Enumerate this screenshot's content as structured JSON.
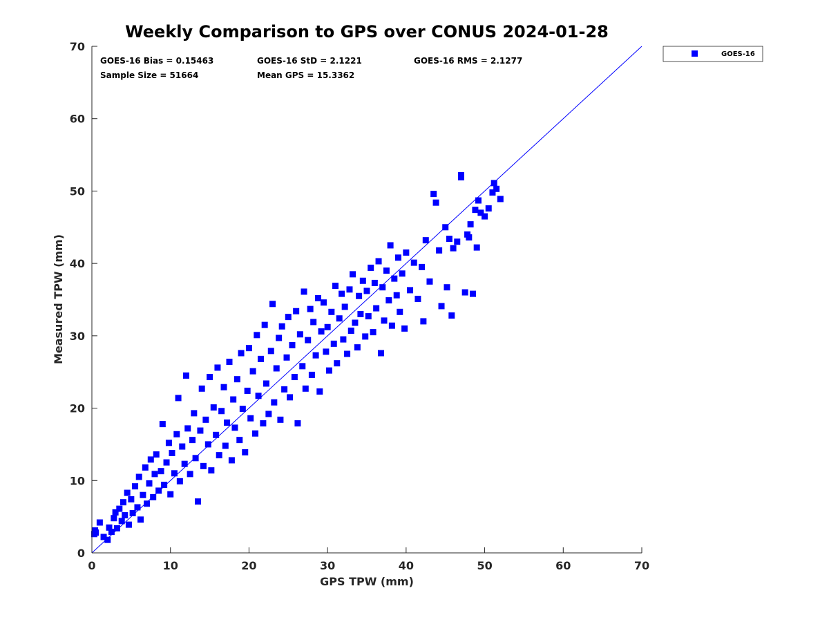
{
  "chart_data": {
    "type": "scatter",
    "title": "Weekly Comparison to GPS over CONUS 2024-01-28",
    "xlabel": "GPS TPW (mm)",
    "ylabel": "Measured TPW (mm)",
    "xlim": [
      0,
      70
    ],
    "ylim": [
      0,
      70
    ],
    "xticks": [
      0,
      10,
      20,
      30,
      40,
      50,
      60,
      70
    ],
    "yticks": [
      0,
      10,
      20,
      30,
      40,
      50,
      60,
      70
    ],
    "grid": false,
    "legend_position": "top-right outside",
    "stats": [
      "GOES-16 Bias = 0.15463",
      "GOES-16 StD = 2.1221",
      "GOES-16 RMS = 2.1277",
      "Sample Size = 51664",
      "Mean GPS = 15.3362"
    ],
    "reference_line": {
      "x": [
        0,
        70
      ],
      "y": [
        0,
        70
      ],
      "color": "#0000ff"
    },
    "series": [
      {
        "name": "GOES-16",
        "color": "#0000ff",
        "marker": "square",
        "points": [
          [
            0.3,
            2.6
          ],
          [
            0.4,
            3.1
          ],
          [
            0.5,
            2.8
          ],
          [
            1.0,
            4.2
          ],
          [
            1.5,
            2.2
          ],
          [
            2.0,
            1.8
          ],
          [
            2.2,
            3.5
          ],
          [
            2.5,
            2.9
          ],
          [
            2.8,
            4.8
          ],
          [
            3.0,
            5.6
          ],
          [
            3.2,
            3.4
          ],
          [
            3.5,
            6.1
          ],
          [
            3.8,
            4.4
          ],
          [
            4.0,
            7.0
          ],
          [
            4.2,
            5.2
          ],
          [
            4.5,
            8.3
          ],
          [
            4.7,
            3.9
          ],
          [
            5.0,
            7.4
          ],
          [
            5.2,
            5.5
          ],
          [
            5.5,
            9.2
          ],
          [
            5.8,
            6.3
          ],
          [
            6.0,
            10.5
          ],
          [
            6.2,
            4.6
          ],
          [
            6.5,
            8.0
          ],
          [
            6.8,
            11.8
          ],
          [
            7.0,
            6.8
          ],
          [
            7.3,
            9.6
          ],
          [
            7.5,
            12.9
          ],
          [
            7.8,
            7.7
          ],
          [
            8.0,
            10.9
          ],
          [
            8.2,
            13.6
          ],
          [
            8.5,
            8.6
          ],
          [
            8.8,
            11.3
          ],
          [
            9.0,
            17.8
          ],
          [
            9.2,
            9.4
          ],
          [
            9.5,
            12.5
          ],
          [
            9.8,
            15.2
          ],
          [
            10.0,
            8.1
          ],
          [
            10.2,
            13.8
          ],
          [
            10.5,
            11.0
          ],
          [
            10.8,
            16.4
          ],
          [
            11.0,
            21.4
          ],
          [
            11.2,
            9.9
          ],
          [
            11.5,
            14.7
          ],
          [
            11.8,
            12.3
          ],
          [
            12.0,
            24.5
          ],
          [
            12.2,
            17.2
          ],
          [
            12.5,
            10.9
          ],
          [
            12.8,
            15.6
          ],
          [
            13.0,
            19.3
          ],
          [
            13.2,
            13.1
          ],
          [
            13.5,
            7.1
          ],
          [
            13.8,
            16.9
          ],
          [
            14.0,
            22.7
          ],
          [
            14.2,
            12.0
          ],
          [
            14.5,
            18.4
          ],
          [
            14.8,
            15.0
          ],
          [
            15.0,
            24.3
          ],
          [
            15.2,
            11.4
          ],
          [
            15.5,
            20.1
          ],
          [
            15.8,
            16.3
          ],
          [
            16.0,
            25.6
          ],
          [
            16.2,
            13.5
          ],
          [
            16.5,
            19.6
          ],
          [
            16.8,
            22.9
          ],
          [
            17.0,
            14.8
          ],
          [
            17.2,
            18.0
          ],
          [
            17.5,
            26.4
          ],
          [
            17.8,
            12.8
          ],
          [
            18.0,
            21.2
          ],
          [
            18.2,
            17.3
          ],
          [
            18.5,
            24.0
          ],
          [
            18.8,
            15.6
          ],
          [
            19.0,
            27.6
          ],
          [
            19.2,
            19.9
          ],
          [
            19.5,
            13.9
          ],
          [
            19.8,
            22.4
          ],
          [
            20.0,
            28.3
          ],
          [
            20.2,
            18.6
          ],
          [
            20.5,
            25.1
          ],
          [
            20.8,
            16.5
          ],
          [
            21.0,
            30.1
          ],
          [
            21.2,
            21.7
          ],
          [
            21.5,
            26.8
          ],
          [
            21.8,
            17.9
          ],
          [
            22.0,
            31.5
          ],
          [
            22.2,
            23.4
          ],
          [
            22.5,
            19.2
          ],
          [
            22.8,
            27.9
          ],
          [
            23.0,
            34.4
          ],
          [
            23.2,
            20.8
          ],
          [
            23.5,
            25.5
          ],
          [
            23.8,
            29.7
          ],
          [
            24.0,
            18.4
          ],
          [
            24.2,
            31.3
          ],
          [
            24.5,
            22.6
          ],
          [
            24.8,
            27.0
          ],
          [
            25.0,
            32.6
          ],
          [
            25.2,
            21.5
          ],
          [
            25.5,
            28.7
          ],
          [
            25.8,
            24.3
          ],
          [
            26.0,
            33.4
          ],
          [
            26.2,
            17.9
          ],
          [
            26.5,
            30.2
          ],
          [
            26.8,
            25.8
          ],
          [
            27.0,
            36.1
          ],
          [
            27.2,
            22.7
          ],
          [
            27.5,
            29.4
          ],
          [
            27.8,
            33.7
          ],
          [
            28.0,
            24.6
          ],
          [
            28.2,
            31.9
          ],
          [
            28.5,
            27.3
          ],
          [
            28.8,
            35.2
          ],
          [
            29.0,
            22.3
          ],
          [
            29.2,
            30.6
          ],
          [
            29.5,
            34.6
          ],
          [
            29.8,
            27.8
          ],
          [
            30.0,
            31.2
          ],
          [
            30.2,
            25.2
          ],
          [
            30.5,
            33.3
          ],
          [
            30.8,
            28.9
          ],
          [
            31.0,
            36.9
          ],
          [
            31.2,
            26.2
          ],
          [
            31.5,
            32.4
          ],
          [
            31.8,
            35.8
          ],
          [
            32.0,
            29.5
          ],
          [
            32.2,
            34.0
          ],
          [
            32.5,
            27.5
          ],
          [
            32.8,
            36.4
          ],
          [
            33.0,
            30.7
          ],
          [
            33.2,
            38.5
          ],
          [
            33.5,
            31.8
          ],
          [
            33.8,
            28.4
          ],
          [
            34.0,
            35.5
          ],
          [
            34.2,
            33.0
          ],
          [
            34.5,
            37.6
          ],
          [
            34.8,
            29.9
          ],
          [
            35.0,
            36.2
          ],
          [
            35.2,
            32.7
          ],
          [
            35.5,
            39.4
          ],
          [
            35.8,
            30.5
          ],
          [
            36.0,
            37.3
          ],
          [
            36.2,
            33.8
          ],
          [
            36.5,
            40.3
          ],
          [
            36.8,
            27.6
          ],
          [
            37.0,
            36.7
          ],
          [
            37.2,
            32.1
          ],
          [
            37.5,
            39.0
          ],
          [
            37.8,
            34.9
          ],
          [
            38.0,
            42.5
          ],
          [
            38.2,
            31.4
          ],
          [
            38.5,
            37.9
          ],
          [
            38.8,
            35.6
          ],
          [
            39.0,
            40.8
          ],
          [
            39.2,
            33.3
          ],
          [
            39.5,
            38.6
          ],
          [
            39.8,
            31.0
          ],
          [
            40.0,
            41.5
          ],
          [
            40.5,
            36.3
          ],
          [
            41.0,
            40.1
          ],
          [
            41.5,
            35.1
          ],
          [
            42.0,
            39.5
          ],
          [
            42.2,
            32.0
          ],
          [
            42.5,
            43.2
          ],
          [
            43.0,
            37.5
          ],
          [
            43.5,
            49.6
          ],
          [
            43.8,
            48.4
          ],
          [
            44.2,
            41.8
          ],
          [
            44.5,
            34.1
          ],
          [
            45.0,
            45.0
          ],
          [
            45.2,
            36.7
          ],
          [
            45.5,
            43.4
          ],
          [
            45.8,
            32.8
          ],
          [
            46.0,
            42.1
          ],
          [
            46.5,
            43.0
          ],
          [
            47.0,
            52.2
          ],
          [
            47.0,
            51.9
          ],
          [
            47.5,
            36.0
          ],
          [
            47.8,
            44.0
          ],
          [
            48.0,
            43.6
          ],
          [
            48.2,
            45.4
          ],
          [
            48.5,
            35.8
          ],
          [
            48.8,
            47.4
          ],
          [
            49.0,
            42.2
          ],
          [
            49.2,
            48.7
          ],
          [
            49.5,
            47.0
          ],
          [
            50.0,
            46.5
          ],
          [
            50.5,
            47.6
          ],
          [
            51.0,
            49.8
          ],
          [
            51.2,
            51.1
          ],
          [
            51.5,
            50.3
          ],
          [
            52.0,
            48.9
          ]
        ]
      }
    ]
  }
}
